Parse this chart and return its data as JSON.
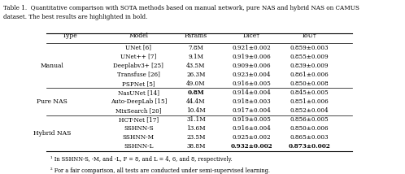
{
  "title": "Table 1.  Quantitative comparison with SOTA methods based on manual network, pure NAS and hybrid NAS on CAMUS\ndataset. The best results are highlighted in bold.",
  "headers": [
    "Type",
    "Model",
    "Params",
    "Dice†",
    "IoU†"
  ],
  "groups": [
    {
      "name": "Manual",
      "rows": [
        [
          "UNet [6]",
          "7.8M",
          "0.921±0.002",
          "0.859±0.003"
        ],
        [
          "UNet++ [7]",
          "9.1M",
          "0.919±0.006",
          "0.855±0.009"
        ],
        [
          "Deeplabv3+ [25]",
          "43.5M",
          "0.909±0.006",
          "0.839±0.009"
        ],
        [
          "Transfuse [26]",
          "26.3M",
          "0.923±0.004",
          "0.861±0.006"
        ],
        [
          "PSPNet [5]",
          "49.0M",
          "0.916±0.005",
          "0.850±0.008"
        ]
      ]
    },
    {
      "name": "Pure NAS",
      "rows": [
        [
          "NasUNet [14]",
          "0.8M",
          "0.914±0.004",
          "0.845±0.005"
        ],
        [
          "Auto-DeepLab [15]",
          "44.4M",
          "0.918±0.003",
          "0.851±0.006"
        ],
        [
          "MixSearch [20]",
          "10.4M",
          "0.917±0.004",
          "0.852±0.004"
        ]
      ]
    },
    {
      "name": "Hybrid NAS",
      "rows": [
        [
          "HCT-Net [17]",
          "31.1M",
          "0.919±0.005",
          "0.856±0.005"
        ],
        [
          "SSHNN-S",
          "13.6M",
          "0.916±0.004",
          "0.850±0.006"
        ],
        [
          "SSHNN-M",
          "23.5M",
          "0.925±0.002",
          "0.865±0.003"
        ],
        [
          "SSHNN-L",
          "38.8M",
          "0.932±0.002",
          "0.873±0.002"
        ]
      ]
    }
  ],
  "bold_cells": [
    [
      0,
      2,
      "0.8M"
    ],
    [
      2,
      0,
      "0.932±0.002"
    ],
    [
      2,
      1,
      "0.873±0.002"
    ]
  ],
  "footnotes": [
    "¹ In SSHNN-S, -M, and -L, F = 8, and L = 4, 6, and 8, respectively.",
    "² For a fair comparison, all tests are conducted under semi-supervised learning."
  ],
  "highlight_rows": [
    {
      "group": 0,
      "row": 2,
      "col": 1
    },
    {
      "group": 1,
      "row": 0,
      "col": 1
    },
    {
      "group": 1,
      "row": 1,
      "col": 1
    },
    {
      "group": 2,
      "row": 3,
      "col": 2
    },
    {
      "group": 2,
      "row": 3,
      "col": 3
    }
  ]
}
